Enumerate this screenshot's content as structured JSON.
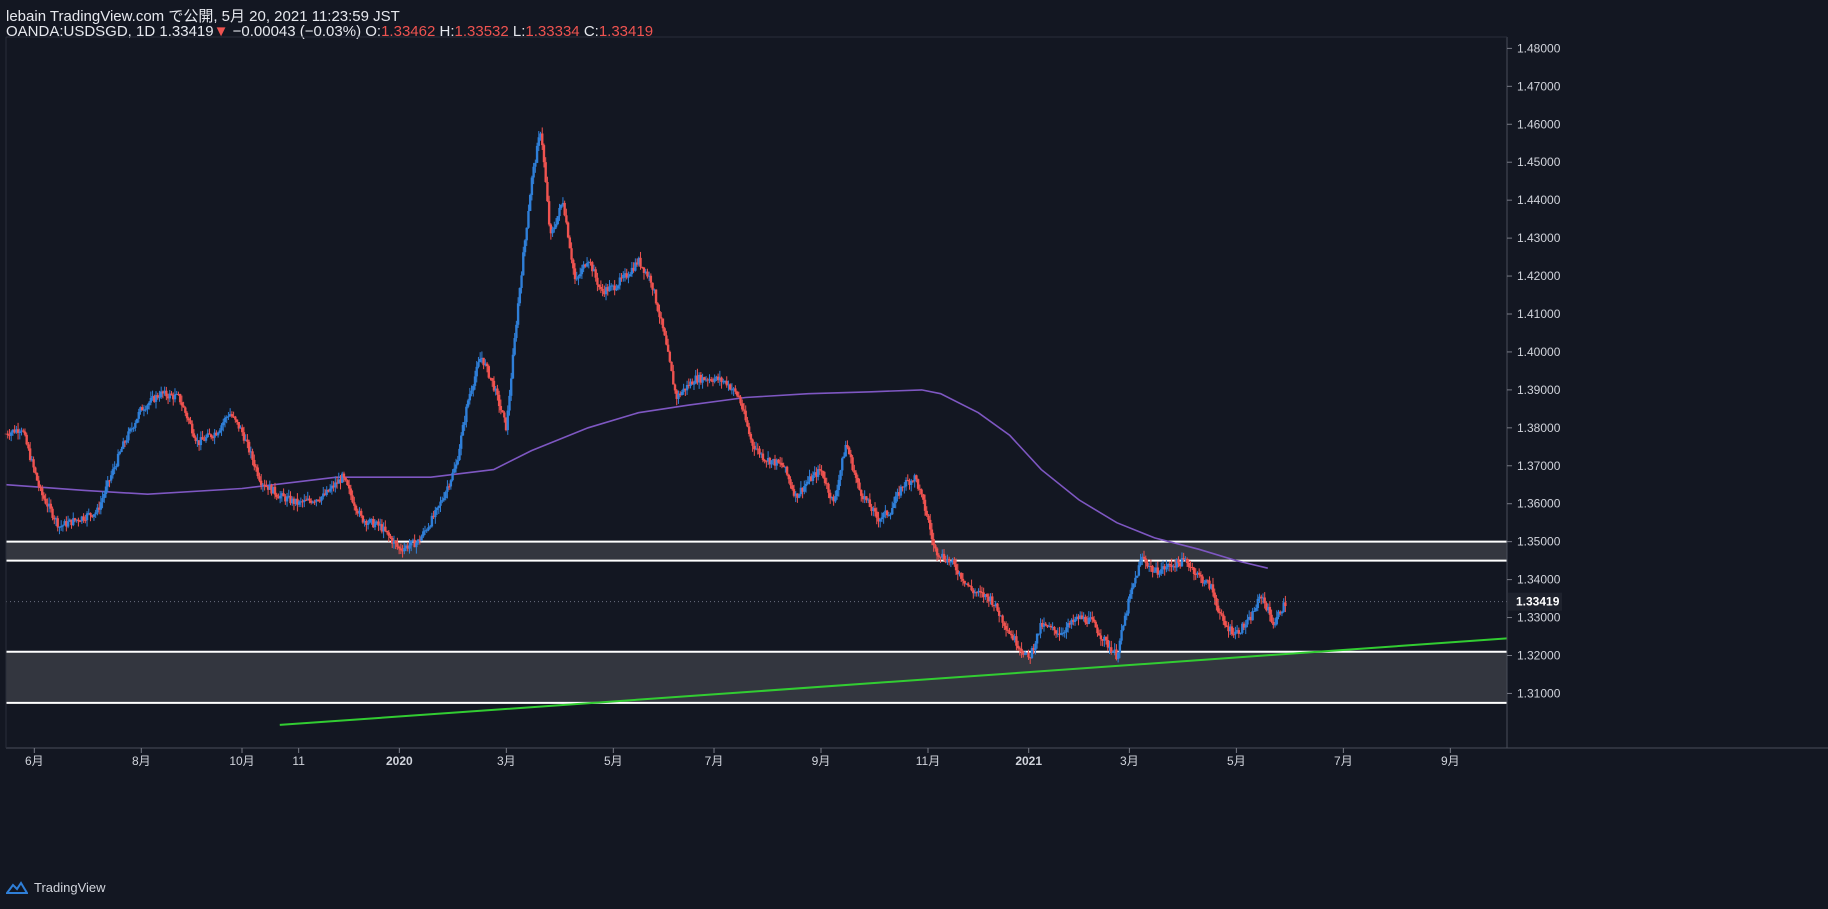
{
  "header": {
    "line1": "lebain TradingView.com で公開, 5月 20, 2021 11:23:59 JST",
    "symbol": "OANDA:USDSGD, 1D",
    "last": "1.33419",
    "down_arrow": "▼",
    "change": "−0.00043 (−0.03%)",
    "o_label": "O:",
    "o_value": "1.33462",
    "h_label": "H:",
    "h_value": "1.33532",
    "l_label": "L:",
    "l_value": "1.33334",
    "c_label": "C:",
    "c_value": "1.33419"
  },
  "brand": {
    "name": "TradingView"
  },
  "colors": {
    "bg": "#131722",
    "up": "#2f7fd8",
    "down": "#ef5350",
    "ma": "#7e57c2",
    "trend": "#32cd32",
    "zone": "#3a3c44",
    "grid": "#2a2e39",
    "price_tag": "#2f7fd8"
  },
  "chart_data": {
    "type": "candlestick",
    "title": "OANDA:USDSGD, 1D",
    "ylim": [
      1.303,
      1.483
    ],
    "y_ticks": [
      "1.48000",
      "1.47000",
      "1.46000",
      "1.45000",
      "1.44000",
      "1.43000",
      "1.42000",
      "1.41000",
      "1.40000",
      "1.39000",
      "1.38000",
      "1.37000",
      "1.36000",
      "1.35000",
      "1.34000",
      "1.33000",
      "1.32000",
      "1.31000"
    ],
    "y_tick_values": [
      1.48,
      1.47,
      1.46,
      1.45,
      1.44,
      1.43,
      1.42,
      1.41,
      1.4,
      1.39,
      1.38,
      1.37,
      1.36,
      1.35,
      1.34,
      1.33,
      1.32,
      1.31
    ],
    "x_range": [
      2019.375,
      2021.76
    ],
    "x_ticks": [
      {
        "label": "6月",
        "t": 2019.42
      },
      {
        "label": "8月",
        "t": 2019.59
      },
      {
        "label": "10月",
        "t": 2019.75
      },
      {
        "label": "11",
        "t": 2019.84
      },
      {
        "label": "2020",
        "t": 2020.0
      },
      {
        "label": "3月",
        "t": 2020.17
      },
      {
        "label": "5月",
        "t": 2020.34
      },
      {
        "label": "7月",
        "t": 2020.5
      },
      {
        "label": "9月",
        "t": 2020.67
      },
      {
        "label": "11月",
        "t": 2020.84
      },
      {
        "label": "2021",
        "t": 2021.0
      },
      {
        "label": "3月",
        "t": 2021.16
      },
      {
        "label": "5月",
        "t": 2021.33
      },
      {
        "label": "7月",
        "t": 2021.5
      },
      {
        "label": "9月",
        "t": 2021.67
      }
    ],
    "price_path": [
      [
        2019.375,
        1.3785
      ],
      [
        2019.4,
        1.38
      ],
      [
        2019.43,
        1.363
      ],
      [
        2019.46,
        1.354
      ],
      [
        2019.49,
        1.356
      ],
      [
        2019.52,
        1.358
      ],
      [
        2019.56,
        1.375
      ],
      [
        2019.59,
        1.385
      ],
      [
        2019.62,
        1.389
      ],
      [
        2019.65,
        1.388
      ],
      [
        2019.68,
        1.376
      ],
      [
        2019.71,
        1.379
      ],
      [
        2019.73,
        1.384
      ],
      [
        2019.75,
        1.379
      ],
      [
        2019.78,
        1.366
      ],
      [
        2019.81,
        1.362
      ],
      [
        2019.84,
        1.36
      ],
      [
        2019.88,
        1.362
      ],
      [
        2019.91,
        1.367
      ],
      [
        2019.94,
        1.356
      ],
      [
        2019.97,
        1.354
      ],
      [
        2020.0,
        1.348
      ],
      [
        2020.03,
        1.35
      ],
      [
        2020.06,
        1.358
      ],
      [
        2020.09,
        1.37
      ],
      [
        2020.11,
        1.388
      ],
      [
        2020.13,
        1.399
      ],
      [
        2020.15,
        1.391
      ],
      [
        2020.17,
        1.38
      ],
      [
        2020.19,
        1.415
      ],
      [
        2020.21,
        1.445
      ],
      [
        2020.225,
        1.459
      ],
      [
        2020.24,
        1.43
      ],
      [
        2020.26,
        1.44
      ],
      [
        2020.28,
        1.418
      ],
      [
        2020.3,
        1.425
      ],
      [
        2020.32,
        1.416
      ],
      [
        2020.34,
        1.417
      ],
      [
        2020.36,
        1.42
      ],
      [
        2020.38,
        1.424
      ],
      [
        2020.4,
        1.419
      ],
      [
        2020.42,
        1.405
      ],
      [
        2020.44,
        1.388
      ],
      [
        2020.47,
        1.393
      ],
      [
        2020.5,
        1.393
      ],
      [
        2020.52,
        1.392
      ],
      [
        2020.54,
        1.388
      ],
      [
        2020.56,
        1.376
      ],
      [
        2020.58,
        1.372
      ],
      [
        2020.61,
        1.37
      ],
      [
        2020.63,
        1.362
      ],
      [
        2020.65,
        1.366
      ],
      [
        2020.67,
        1.369
      ],
      [
        2020.69,
        1.36
      ],
      [
        2020.71,
        1.376
      ],
      [
        2020.73,
        1.364
      ],
      [
        2020.76,
        1.356
      ],
      [
        2020.78,
        1.358
      ],
      [
        2020.8,
        1.365
      ],
      [
        2020.82,
        1.367
      ],
      [
        2020.84,
        1.356
      ],
      [
        2020.85,
        1.348
      ],
      [
        2020.88,
        1.344
      ],
      [
        2020.91,
        1.337
      ],
      [
        2020.94,
        1.335
      ],
      [
        2020.97,
        1.326
      ],
      [
        2021.0,
        1.319
      ],
      [
        2021.02,
        1.328
      ],
      [
        2021.05,
        1.326
      ],
      [
        2021.08,
        1.33
      ],
      [
        2021.1,
        1.329
      ],
      [
        2021.12,
        1.324
      ],
      [
        2021.14,
        1.32
      ],
      [
        2021.16,
        1.335
      ],
      [
        2021.18,
        1.346
      ],
      [
        2021.2,
        1.342
      ],
      [
        2021.23,
        1.344
      ],
      [
        2021.25,
        1.345
      ],
      [
        2021.27,
        1.341
      ],
      [
        2021.29,
        1.338
      ],
      [
        2021.31,
        1.328
      ],
      [
        2021.33,
        1.326
      ],
      [
        2021.35,
        1.329
      ],
      [
        2021.37,
        1.336
      ],
      [
        2021.39,
        1.328
      ],
      [
        2021.4,
        1.332
      ],
      [
        2021.41,
        1.3342
      ]
    ],
    "moving_average": {
      "color": "#7e57c2",
      "points": [
        [
          2019.375,
          1.365
        ],
        [
          2019.5,
          1.3635
        ],
        [
          2019.6,
          1.3625
        ],
        [
          2019.75,
          1.364
        ],
        [
          2019.9,
          1.367
        ],
        [
          2020.05,
          1.367
        ],
        [
          2020.15,
          1.369
        ],
        [
          2020.21,
          1.374
        ],
        [
          2020.3,
          1.38
        ],
        [
          2020.38,
          1.384
        ],
        [
          2020.46,
          1.386
        ],
        [
          2020.55,
          1.388
        ],
        [
          2020.65,
          1.389
        ],
        [
          2020.75,
          1.3895
        ],
        [
          2020.83,
          1.39
        ],
        [
          2020.86,
          1.389
        ],
        [
          2020.92,
          1.384
        ],
        [
          2020.97,
          1.378
        ],
        [
          2021.02,
          1.369
        ],
        [
          2021.08,
          1.361
        ],
        [
          2021.14,
          1.355
        ],
        [
          2021.2,
          1.351
        ],
        [
          2021.27,
          1.348
        ],
        [
          2021.33,
          1.345
        ],
        [
          2021.38,
          1.343
        ]
      ]
    },
    "zones": [
      {
        "top": 1.35,
        "bottom": 1.345
      },
      {
        "top": 1.321,
        "bottom": 1.3075
      }
    ],
    "trendline": {
      "color": "#32cd32",
      "from": [
        2019.81,
        1.3017
      ],
      "to": [
        2021.76,
        1.3245
      ]
    },
    "last_price": {
      "value": 1.33419,
      "label": "1.33419"
    }
  }
}
